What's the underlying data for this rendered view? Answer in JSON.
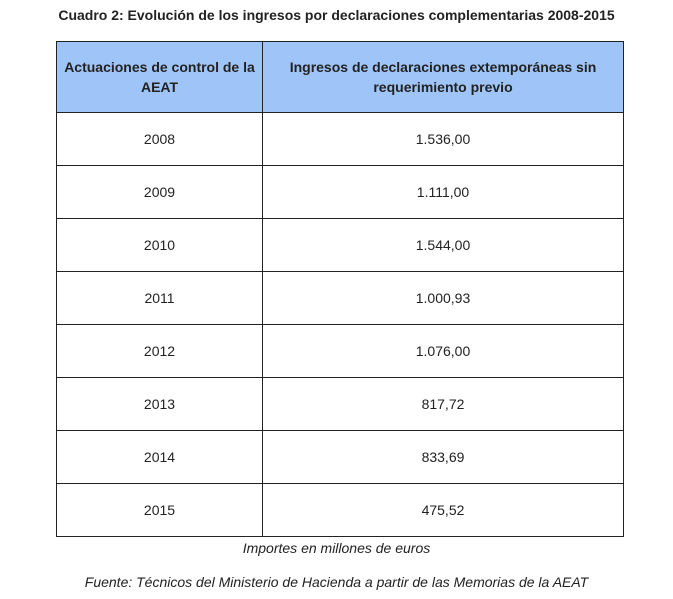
{
  "title": "Cuadro 2: Evolución de los ingresos por declaraciones complementarias 2008-2015",
  "table": {
    "header": [
      "Actuaciones de control de la AEAT",
      "Ingresos de declaraciones extemporáneas sin requerimiento previo"
    ],
    "rows": [
      [
        "2008",
        "1.536,00"
      ],
      [
        "2009",
        "1.111,00"
      ],
      [
        "2010",
        "1.544,00"
      ],
      [
        "2011",
        "1.000,93"
      ],
      [
        "2012",
        "1.076,00"
      ],
      [
        "2013",
        "817,72"
      ],
      [
        "2014",
        "833,69"
      ],
      [
        "2015",
        "475,52"
      ]
    ]
  },
  "notes": [
    "Importes en millones de euros",
    "Fuente: Técnicos del Ministerio de Hacienda a partir de las Memorias de la AEAT"
  ]
}
